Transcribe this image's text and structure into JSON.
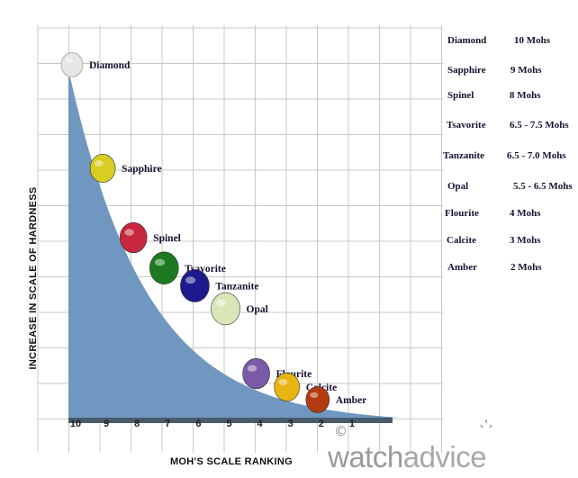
{
  "chart_data": {
    "type": "area",
    "x": [
      10,
      9,
      8,
      7,
      6,
      5,
      4,
      3,
      2,
      1
    ],
    "x_tick_labels": [
      "10",
      "9",
      "8",
      "7",
      "6",
      "5",
      "4",
      "3",
      "2",
      "1"
    ],
    "xlabel": "MOH'S SCALE RANKING",
    "ylabel": "INCREASE IN SCALE OF HARDNESS",
    "grid": true,
    "area_color": "#6f97bf",
    "gems": [
      {
        "name": "Diamond",
        "mohs_rank": 10,
        "hardness": 10,
        "color": "#e6e6e6"
      },
      {
        "name": "Sapphire",
        "mohs_rank": 9,
        "hardness": 9,
        "color": "#d9cc22"
      },
      {
        "name": "Spinel",
        "mohs_rank": 8,
        "hardness": 8,
        "color": "#c8283e"
      },
      {
        "name": "Tsavorite",
        "mohs_rank": 7,
        "hardness": 7.25,
        "color": "#1d7a22"
      },
      {
        "name": "Tanzanite",
        "mohs_rank": 6,
        "hardness": 6.75,
        "color": "#1c1a8c"
      },
      {
        "name": "Opal",
        "mohs_rank": 5,
        "hardness": 6,
        "color": "#d8e6b8"
      },
      {
        "name": "Flourite",
        "mohs_rank": 4,
        "hardness": 4,
        "color": "#7a5aa8"
      },
      {
        "name": "Calcite",
        "mohs_rank": 3,
        "hardness": 3,
        "color": "#e8b412"
      },
      {
        "name": "Amber",
        "mohs_rank": 2,
        "hardness": 2,
        "color": "#b43a10"
      }
    ]
  },
  "legend": [
    {
      "name": "Diamond",
      "value": "10 Mohs"
    },
    {
      "name": "Sapphire",
      "value": "9 Mohs"
    },
    {
      "name": "Spinel",
      "value": "8 Mohs"
    },
    {
      "name": "Tsavorite",
      "value": "6.5 - 7.5 Mohs"
    },
    {
      "name": "Tanzanite",
      "value": "6.5 - 7.0 Mohs"
    },
    {
      "name": "Opal",
      "value": "5.5 - 6.5 Mohs"
    },
    {
      "name": "Flourite",
      "value": "4 Mohs"
    },
    {
      "name": "Calcite",
      "value": "3 Mohs"
    },
    {
      "name": "Amber",
      "value": "2 Mohs"
    }
  ],
  "watermark": {
    "copyright": "©",
    "brand_a": "watch",
    "brand_b": "advice"
  }
}
